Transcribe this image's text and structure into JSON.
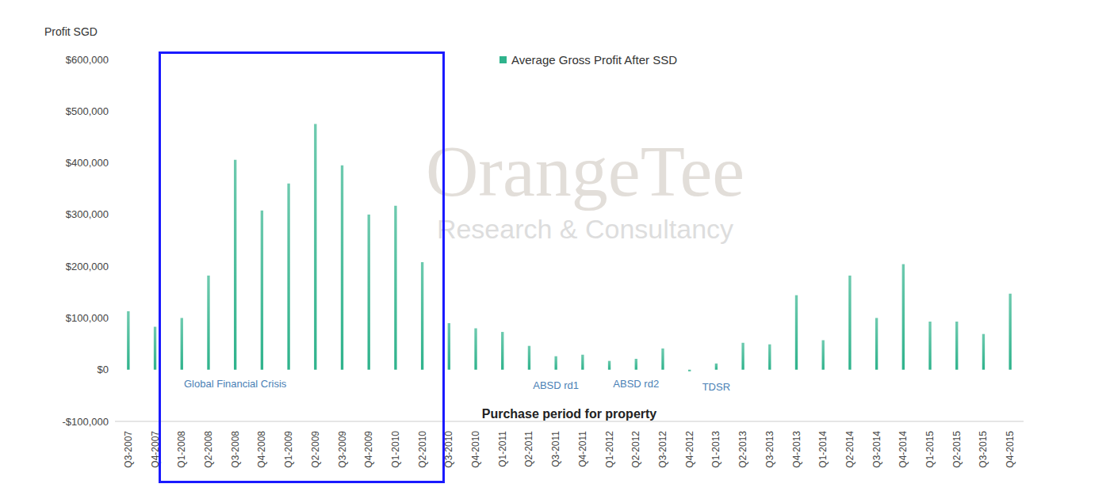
{
  "chart_data": {
    "type": "bar",
    "y_label": "Profit SGD",
    "x_label": "Purchase period for property",
    "watermark": [
      "OrangeTee",
      "Research & Consultancy"
    ],
    "categories": [
      "Q3-2007",
      "Q4-2007",
      "Q1-2008",
      "Q2-2008",
      "Q3-2008",
      "Q4-2008",
      "Q1-2009",
      "Q2-2009",
      "Q3-2009",
      "Q4-2009",
      "Q1-2010",
      "Q2-2010",
      "Q3-2010",
      "Q4-2010",
      "Q1-2011",
      "Q2-2011",
      "Q3-2011",
      "Q4-2011",
      "Q1-2012",
      "Q2-2012",
      "Q3-2012",
      "Q4-2012",
      "Q1-2013",
      "Q2-2013",
      "Q3-2013",
      "Q4-2013",
      "Q1-2014",
      "Q2-2014",
      "Q3-2014",
      "Q4-2014",
      "Q1-2015",
      "Q2-2015",
      "Q3-2015",
      "Q4-2015"
    ],
    "series": [
      {
        "name": "Average Gross Profit After SSD",
        "color": "#2fb38c",
        "values": [
          113000,
          83000,
          100000,
          182000,
          406000,
          308000,
          360000,
          475000,
          395000,
          300000,
          317000,
          208000,
          90000,
          80000,
          73000,
          46000,
          26000,
          29000,
          17000,
          21000,
          41000,
          -3000,
          12000,
          52000,
          49000,
          144000,
          57000,
          182000,
          100000,
          204000,
          93000,
          93000,
          69000,
          147000
        ]
      }
    ],
    "ylim": [
      -100000,
      600000
    ],
    "yticks": [
      {
        "value": -100000,
        "label": "-$100,000"
      },
      {
        "value": 0,
        "label": "$0"
      },
      {
        "value": 100000,
        "label": "$100,000"
      },
      {
        "value": 200000,
        "label": "$200,000"
      },
      {
        "value": 300000,
        "label": "$300,000"
      },
      {
        "value": 400000,
        "label": "$400,000"
      },
      {
        "value": 500000,
        "label": "$500,000"
      },
      {
        "value": 600000,
        "label": "$600,000"
      }
    ],
    "grid": false,
    "legend": "top",
    "annotations": [
      {
        "text": "Global Financial Crisis",
        "category": "Q3-2008",
        "y": -27000
      },
      {
        "text": "ABSD rd1",
        "category": "Q3-2011",
        "y": -30000
      },
      {
        "text": "ABSD rd2",
        "category": "Q2-2012",
        "y": -27000
      },
      {
        "text": "TDSR",
        "category": "Q1-2013",
        "y": -33000
      }
    ]
  }
}
